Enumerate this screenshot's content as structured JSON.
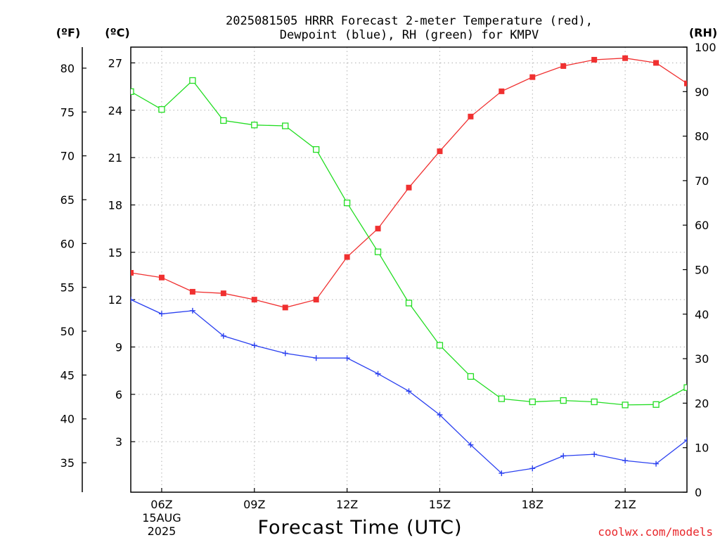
{
  "chart_data": {
    "type": "line",
    "title": "2025081505 HRRR Forecast 2-meter Temperature (red),",
    "title_line2": "Dewpoint (blue), RH (green) for KMPV",
    "xlabel": "Forecast Time (UTC)",
    "credit": "coolwx.com/models",
    "units": {
      "left_outer": "(ºF)",
      "left_inner": "(ºC)",
      "right": "(RH)"
    },
    "x_ticks": [
      {
        "x": 6,
        "label": "06Z",
        "sub1": "15AUG",
        "sub2": "2025"
      },
      {
        "x": 9,
        "label": "09Z"
      },
      {
        "x": 12,
        "label": "12Z"
      },
      {
        "x": 15,
        "label": "15Z"
      },
      {
        "x": 18,
        "label": "18Z"
      },
      {
        "x": 21,
        "label": "21Z"
      }
    ],
    "xlim": [
      5,
      23
    ],
    "ylim_c": [
      -0.2,
      28
    ],
    "ylim_rh": [
      0,
      100
    ],
    "ticks_c": [
      3,
      6,
      9,
      12,
      15,
      18,
      21,
      24,
      27
    ],
    "ticks_f": [
      35,
      40,
      45,
      50,
      55,
      60,
      65,
      70,
      75,
      80
    ],
    "ticks_rh": [
      0,
      10,
      20,
      30,
      40,
      50,
      60,
      70,
      80,
      90,
      100
    ],
    "x": [
      5,
      6,
      7,
      8,
      9,
      10,
      11,
      12,
      13,
      14,
      15,
      16,
      17,
      18,
      19,
      20,
      21,
      22,
      23
    ],
    "series": [
      {
        "name": "Temperature",
        "color": "#f03030",
        "marker": "filled-square",
        "values": [
          13.7,
          13.4,
          12.5,
          12.4,
          12.0,
          11.5,
          12.0,
          14.7,
          16.5,
          19.1,
          21.4,
          23.6,
          25.2,
          26.1,
          26.8,
          27.2,
          27.3,
          27.0,
          25.7
        ]
      },
      {
        "name": "Dewpoint",
        "color": "#2a40f0",
        "marker": "plus",
        "values": [
          12.0,
          11.1,
          11.3,
          9.7,
          9.1,
          8.6,
          8.3,
          8.3,
          7.3,
          6.2,
          4.7,
          2.8,
          1.0,
          1.3,
          2.1,
          2.2,
          1.8,
          1.6,
          3.1
        ]
      },
      {
        "name": "RH",
        "color": "#22dd22",
        "marker": "open-square",
        "axis": "right",
        "values": [
          90,
          86,
          92.5,
          83.5,
          82.5,
          82.3,
          77,
          65,
          54,
          42.5,
          33,
          26,
          21,
          20.3,
          20.6,
          20.3,
          19.6,
          19.7,
          23.5
        ]
      }
    ]
  }
}
